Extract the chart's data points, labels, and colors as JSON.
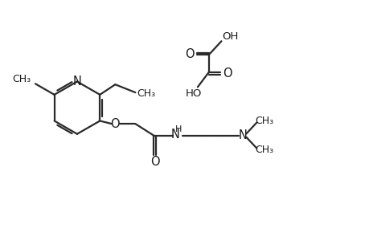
{
  "bg_color": "#ffffff",
  "line_color": "#2a2a2a",
  "text_color": "#1a1a1a",
  "font_size": 9.5,
  "lw": 1.6,
  "xlim": [
    0,
    10
  ],
  "ylim": [
    0,
    6.5
  ]
}
